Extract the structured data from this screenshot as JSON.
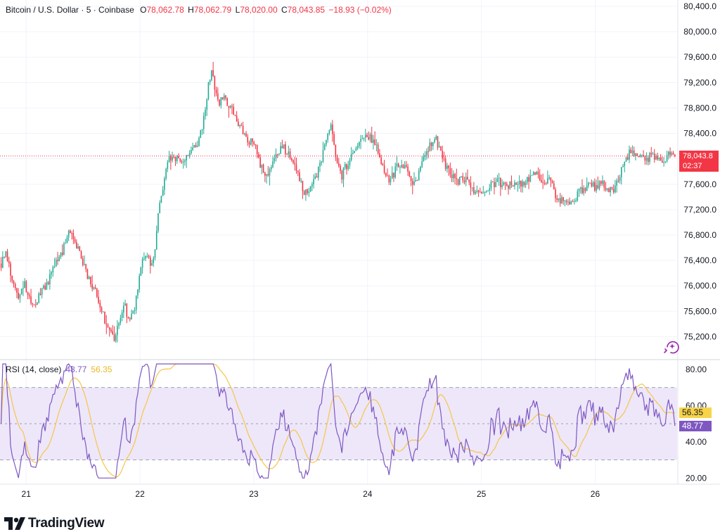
{
  "header": {
    "symbol": "Bitcoin / U.S. Dollar · 5 · Coinbase",
    "open_label": "O",
    "open_value": "78,062.78",
    "high_label": "H",
    "high_value": "78,062.79",
    "low_label": "L",
    "low_value": "78,020.00",
    "close_label": "C",
    "close_value": "78,043.85",
    "change_value": "−18.93 (−0.02%)"
  },
  "price_tag": {
    "price": "78,043.8",
    "countdown": "02:37"
  },
  "rsi_panel": {
    "label": "RSI (14, close)",
    "rsi_value": "48.77",
    "ma_value": "56.35"
  },
  "branding": {
    "name": "TradingView"
  },
  "colors": {
    "up": "#22ab94",
    "down": "#f23645",
    "rsi_line": "#7e57c2",
    "rsi_ma": "#f7c548",
    "rsi_band": "#ede7f9",
    "grid": "#f0f3fa"
  },
  "icons": {
    "logo": "tradingview-logo-icon",
    "overlay": "sparkle-icon"
  },
  "chart_data": [
    {
      "type": "candlestick",
      "x_axis": {
        "ticks": [
          "21",
          "22",
          "23",
          "24",
          "25",
          "26"
        ],
        "range": [
          20.77,
          26.72
        ]
      },
      "y_axis": {
        "range": [
          74850,
          80500
        ],
        "ticks": [
          "75,200.0",
          "75,600.0",
          "76,000.0",
          "76,400.0",
          "76,800.0",
          "77,200.0",
          "77,600.0",
          "78,000.0",
          "78,400.0",
          "78,800.0",
          "79,200.0",
          "79,600.0",
          "80,000.0",
          "80,400.0"
        ],
        "tick_values": [
          75200,
          75600,
          76000,
          76400,
          76800,
          77200,
          77600,
          78000,
          78400,
          78800,
          79200,
          79600,
          80000,
          80400
        ]
      },
      "last_price": 78043.85,
      "price_path": [
        [
          20.78,
          76350
        ],
        [
          20.82,
          76550
        ],
        [
          20.87,
          76150
        ],
        [
          20.93,
          75850
        ],
        [
          20.98,
          76050
        ],
        [
          21.05,
          75650
        ],
        [
          21.12,
          75850
        ],
        [
          21.2,
          76100
        ],
        [
          21.25,
          76300
        ],
        [
          21.32,
          76550
        ],
        [
          21.38,
          76850
        ],
        [
          21.44,
          76650
        ],
        [
          21.5,
          76350
        ],
        [
          21.56,
          76050
        ],
        [
          21.62,
          75850
        ],
        [
          21.66,
          75600
        ],
        [
          21.72,
          75350
        ],
        [
          21.78,
          75100
        ],
        [
          21.82,
          75500
        ],
        [
          21.86,
          75750
        ],
        [
          21.9,
          75400
        ],
        [
          21.96,
          75700
        ],
        [
          22.0,
          76250
        ],
        [
          22.05,
          76500
        ],
        [
          22.1,
          76300
        ],
        [
          22.13,
          76550
        ],
        [
          22.16,
          77200
        ],
        [
          22.2,
          77550
        ],
        [
          22.24,
          77900
        ],
        [
          22.26,
          78050
        ],
        [
          22.3,
          78000
        ],
        [
          22.35,
          77950
        ],
        [
          22.4,
          78050
        ],
        [
          22.45,
          78100
        ],
        [
          22.5,
          78200
        ],
        [
          22.55,
          78500
        ],
        [
          22.58,
          78850
        ],
        [
          22.6,
          79150
        ],
        [
          22.63,
          79400
        ],
        [
          22.66,
          79050
        ],
        [
          22.7,
          78900
        ],
        [
          22.75,
          78950
        ],
        [
          22.8,
          78800
        ],
        [
          22.85,
          78600
        ],
        [
          22.9,
          78450
        ],
        [
          22.95,
          78300
        ],
        [
          23.0,
          78250
        ],
        [
          23.05,
          77950
        ],
        [
          23.1,
          77750
        ],
        [
          23.15,
          77850
        ],
        [
          23.2,
          78050
        ],
        [
          23.25,
          78200
        ],
        [
          23.3,
          78100
        ],
        [
          23.35,
          77900
        ],
        [
          23.4,
          77700
        ],
        [
          23.45,
          77450
        ],
        [
          23.5,
          77550
        ],
        [
          23.55,
          77750
        ],
        [
          23.6,
          78050
        ],
        [
          23.65,
          78350
        ],
        [
          23.68,
          78500
        ],
        [
          23.7,
          78300
        ],
        [
          23.73,
          77950
        ],
        [
          23.77,
          77700
        ],
        [
          23.8,
          77850
        ],
        [
          23.85,
          78000
        ],
        [
          23.9,
          78150
        ],
        [
          23.95,
          78300
        ],
        [
          24.0,
          78400
        ],
        [
          24.05,
          78250
        ],
        [
          24.1,
          78100
        ],
        [
          24.15,
          77800
        ],
        [
          24.2,
          77650
        ],
        [
          24.25,
          77850
        ],
        [
          24.3,
          77950
        ],
        [
          24.35,
          77800
        ],
        [
          24.4,
          77600
        ],
        [
          24.45,
          77750
        ],
        [
          24.5,
          78050
        ],
        [
          24.55,
          78250
        ],
        [
          24.6,
          78300
        ],
        [
          24.65,
          78050
        ],
        [
          24.7,
          77850
        ],
        [
          24.75,
          77700
        ],
        [
          24.8,
          77650
        ],
        [
          24.85,
          77700
        ],
        [
          24.9,
          77550
        ],
        [
          24.95,
          77450
        ],
        [
          25.0,
          77400
        ],
        [
          25.05,
          77500
        ],
        [
          25.1,
          77600
        ],
        [
          25.15,
          77650
        ],
        [
          25.2,
          77550
        ],
        [
          25.25,
          77600
        ],
        [
          25.3,
          77550
        ],
        [
          25.35,
          77600
        ],
        [
          25.4,
          77650
        ],
        [
          25.45,
          77800
        ],
        [
          25.5,
          77700
        ],
        [
          25.55,
          77650
        ],
        [
          25.6,
          77650
        ],
        [
          25.65,
          77450
        ],
        [
          25.7,
          77350
        ],
        [
          25.75,
          77300
        ],
        [
          25.8,
          77350
        ],
        [
          25.85,
          77450
        ],
        [
          25.9,
          77550
        ],
        [
          25.95,
          77600
        ],
        [
          26.0,
          77550
        ],
        [
          26.05,
          77600
        ],
        [
          26.1,
          77550
        ],
        [
          26.15,
          77500
        ],
        [
          26.2,
          77650
        ],
        [
          26.25,
          77950
        ],
        [
          26.3,
          78100
        ],
        [
          26.35,
          78050
        ],
        [
          26.4,
          78100
        ],
        [
          26.45,
          78000
        ],
        [
          26.5,
          78050
        ],
        [
          26.55,
          78050
        ],
        [
          26.6,
          77950
        ],
        [
          26.65,
          78100
        ],
        [
          26.7,
          78044
        ]
      ]
    },
    {
      "type": "line",
      "title": "RSI (14, close)",
      "y_axis": {
        "range": [
          17,
          85
        ],
        "ticks": [
          "20.00",
          "40.00",
          "60.00",
          "80.00"
        ],
        "tick_values": [
          20,
          40,
          60,
          80
        ]
      },
      "bands": {
        "upper": 70,
        "middle": 50,
        "lower": 30
      },
      "series": [
        {
          "name": "RSI",
          "last_value": 48.77
        },
        {
          "name": "RSI-based MA",
          "last_value": 56.35
        }
      ]
    }
  ]
}
